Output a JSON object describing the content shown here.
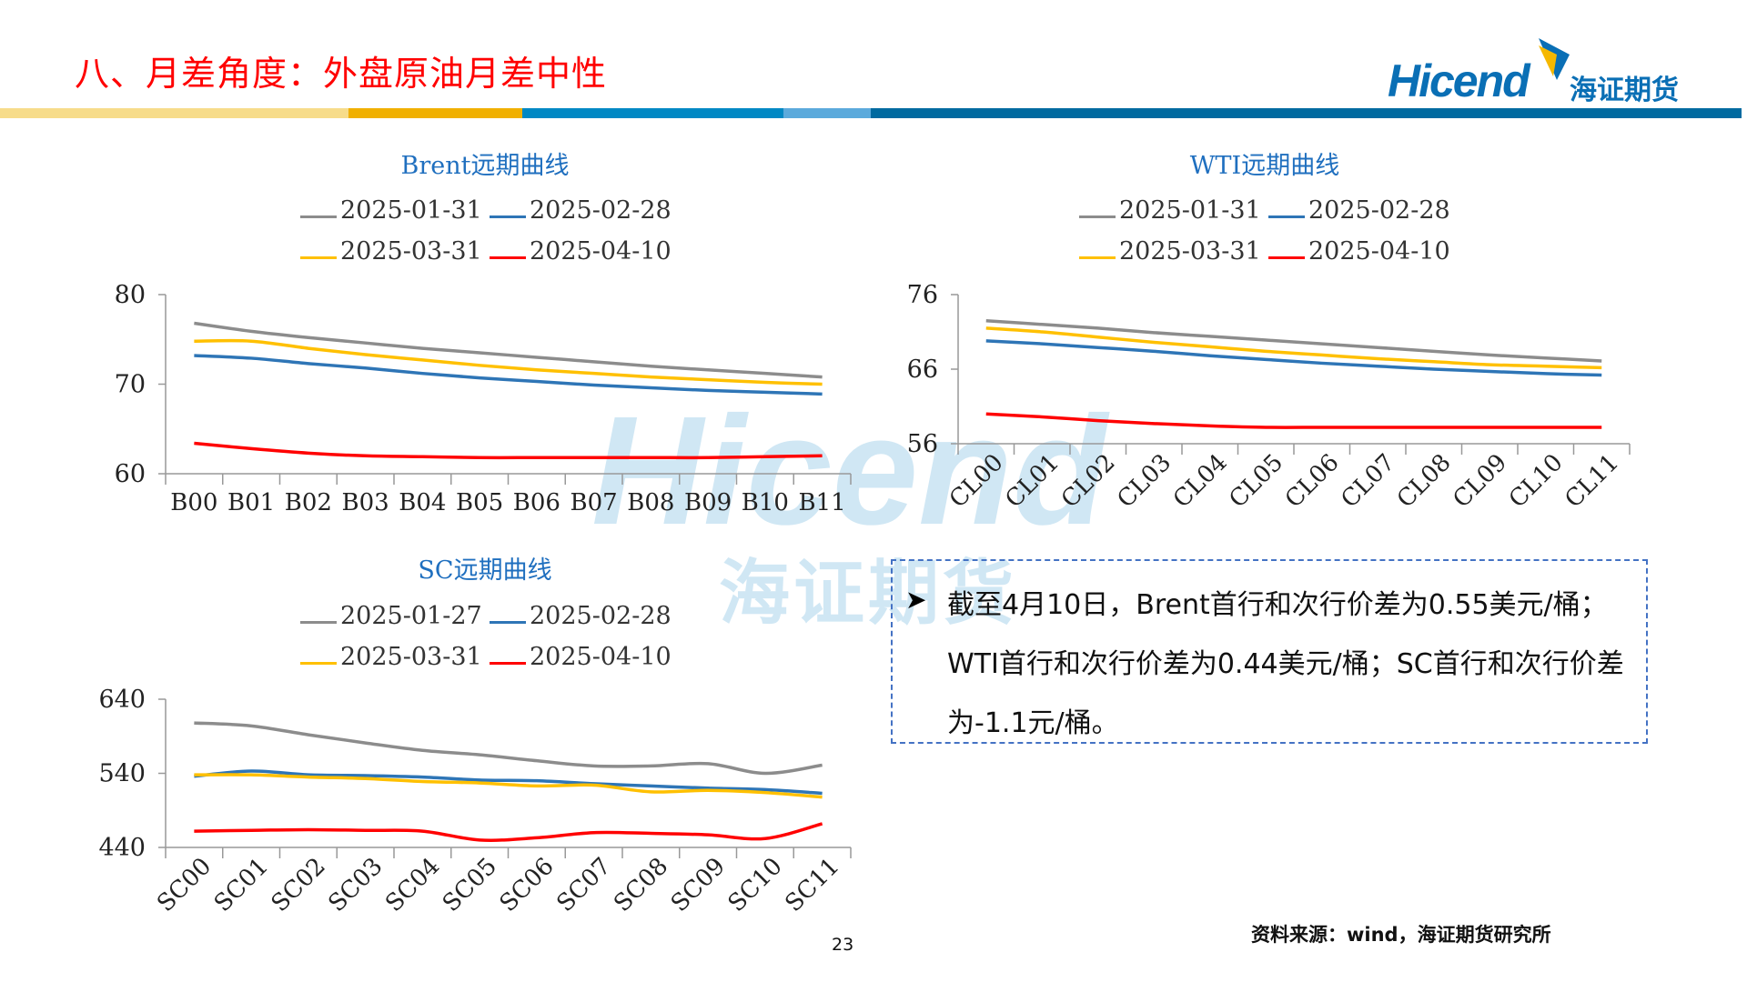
{
  "header": {
    "title": "八、月差角度：外盘原油月差中性",
    "logo_text": "Hicend",
    "logo_cn": "海证期货",
    "bar_colors": [
      "#F7DC8A",
      "#F0B000",
      "#0088C4",
      "#5BAADC",
      "#006AA0"
    ]
  },
  "watermark": {
    "text": "Hicend",
    "cn": "海证期货"
  },
  "series_colors": {
    "2025-01-31": "#8c8c8c",
    "2025-01-27": "#8c8c8c",
    "2025-02-28": "#2e75b6",
    "2025-03-31": "#ffc000",
    "2025-04-10": "#ff0000"
  },
  "chart_data": [
    {
      "type": "line",
      "title": "Brent远期曲线",
      "categories": [
        "B00",
        "B01",
        "B02",
        "B03",
        "B04",
        "B05",
        "B06",
        "B07",
        "B08",
        "B09",
        "B10",
        "B11"
      ],
      "ylim": [
        60,
        80
      ],
      "yticks": [
        60,
        70,
        80
      ],
      "legend": "top",
      "grid": false,
      "series": [
        {
          "name": "2025-01-31",
          "color": "#8c8c8c",
          "values": [
            76.8,
            75.9,
            75.2,
            74.6,
            74.0,
            73.5,
            73.0,
            72.5,
            72.0,
            71.6,
            71.2,
            70.8
          ]
        },
        {
          "name": "2025-02-28",
          "color": "#2e75b6",
          "values": [
            73.2,
            72.9,
            72.3,
            71.8,
            71.2,
            70.7,
            70.3,
            69.9,
            69.6,
            69.3,
            69.1,
            68.9
          ]
        },
        {
          "name": "2025-03-31",
          "color": "#ffc000",
          "values": [
            74.8,
            74.8,
            74.0,
            73.3,
            72.7,
            72.1,
            71.6,
            71.2,
            70.8,
            70.5,
            70.2,
            70.0
          ]
        },
        {
          "name": "2025-04-10",
          "color": "#ff0000",
          "values": [
            63.4,
            62.8,
            62.3,
            62.0,
            61.9,
            61.8,
            61.8,
            61.8,
            61.8,
            61.8,
            61.9,
            62.0
          ]
        }
      ]
    },
    {
      "type": "line",
      "title": "WTI远期曲线",
      "categories": [
        "CL00",
        "CL01",
        "CL02",
        "CL03",
        "CL04",
        "CL05",
        "CL06",
        "CL07",
        "CL08",
        "CL09",
        "CL10",
        "CL11"
      ],
      "ylim": [
        56,
        76
      ],
      "yticks": [
        56,
        66,
        76
      ],
      "legend": "top",
      "grid": false,
      "series": [
        {
          "name": "2025-01-31",
          "color": "#8c8c8c",
          "values": [
            72.5,
            72.0,
            71.5,
            70.9,
            70.4,
            69.9,
            69.4,
            68.9,
            68.4,
            67.9,
            67.5,
            67.1
          ]
        },
        {
          "name": "2025-02-28",
          "color": "#2e75b6",
          "values": [
            69.8,
            69.4,
            68.9,
            68.4,
            67.8,
            67.3,
            66.8,
            66.4,
            66.0,
            65.7,
            65.4,
            65.2
          ]
        },
        {
          "name": "2025-03-31",
          "color": "#ffc000",
          "values": [
            71.5,
            71.0,
            70.3,
            69.6,
            69.0,
            68.4,
            67.9,
            67.4,
            67.0,
            66.6,
            66.4,
            66.2
          ]
        },
        {
          "name": "2025-04-10",
          "color": "#ff0000",
          "values": [
            60.0,
            59.6,
            59.1,
            58.7,
            58.4,
            58.2,
            58.2,
            58.2,
            58.2,
            58.2,
            58.2,
            58.2
          ]
        }
      ]
    },
    {
      "type": "line",
      "title": "SC远期曲线",
      "categories": [
        "SC00",
        "SC01",
        "SC02",
        "SC03",
        "SC04",
        "SC05",
        "SC06",
        "SC07",
        "SC08",
        "SC09",
        "SC10",
        "SC11"
      ],
      "ylim": [
        440,
        640
      ],
      "yticks": [
        440,
        540,
        640
      ],
      "legend": "top",
      "grid": false,
      "series": [
        {
          "name": "2025-01-27",
          "color": "#8c8c8c",
          "values": [
            608,
            604,
            592,
            581,
            571,
            565,
            557,
            550,
            550,
            553,
            540,
            551
          ]
        },
        {
          "name": "2025-02-28",
          "color": "#2e75b6",
          "values": [
            536,
            543,
            538,
            537,
            535,
            531,
            530,
            526,
            523,
            520,
            518,
            513
          ]
        },
        {
          "name": "2025-03-31",
          "color": "#ffc000",
          "values": [
            538,
            538,
            535,
            533,
            529,
            527,
            523,
            524,
            515,
            517,
            514,
            508
          ]
        },
        {
          "name": "2025-04-10",
          "color": "#ff0000",
          "values": [
            462,
            463,
            464,
            463,
            462,
            450,
            453,
            460,
            459,
            457,
            452,
            472
          ]
        }
      ]
    }
  ],
  "textbox": {
    "bullet_icon": "arrow-bullet",
    "text": "截至4月10日，Brent首行和次行价差为0.55美元/桶；WTI首行和次行价差为0.44美元/桶；SC首行和次行价差为-1.1元/桶。"
  },
  "source": "资料来源：wind，海证期货研究所",
  "page_number": "23"
}
